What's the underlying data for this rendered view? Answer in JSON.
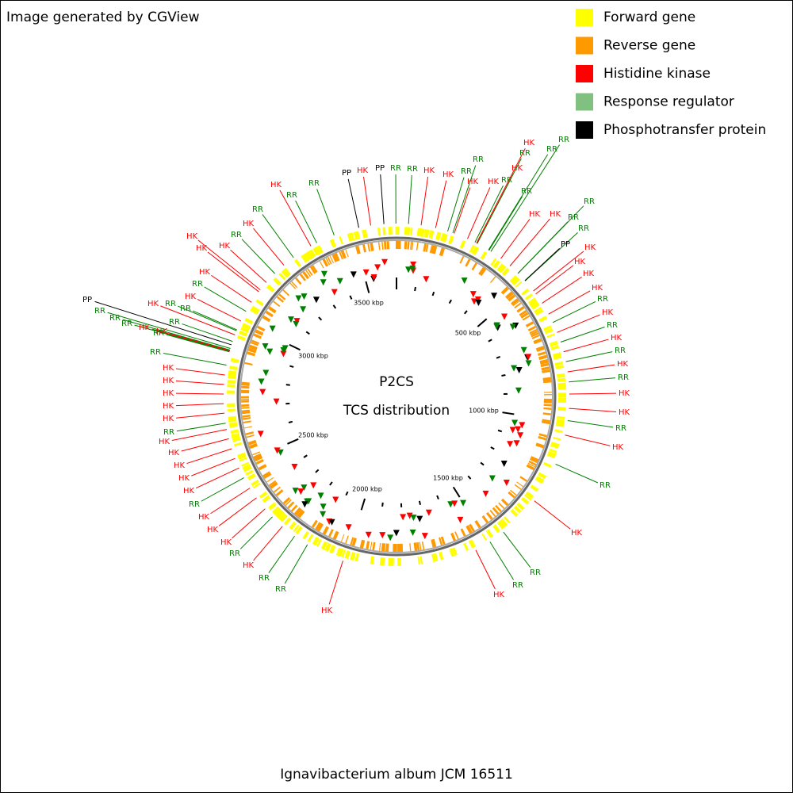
{
  "header": {
    "credit": "Image generated by CGView"
  },
  "legend": [
    {
      "label": "Forward gene",
      "color": "#ffff00"
    },
    {
      "label": "Reverse gene",
      "color": "#ff9900"
    },
    {
      "label": "Histidine kinase",
      "color": "#ff0000"
    },
    {
      "label": "Response regulator",
      "color": "#80c080"
    },
    {
      "label": "Phosphotransfer protein",
      "color": "#000000"
    }
  ],
  "center": {
    "title": "P2CS",
    "subtitle": "TCS distribution"
  },
  "scale_labels": [
    "500 kbp",
    "1000 kbp",
    "1500 kbp",
    "2000 kbp",
    "2500 kbp",
    "3000 kbp",
    "3500 kbp"
  ],
  "feature_colors": {
    "HK": "#ff0000",
    "RR": "#008000",
    "PP": "#000000"
  },
  "features": [
    "HK",
    "RR",
    "RR",
    "PP",
    "HK",
    "PP",
    "RR",
    "RR",
    "HK",
    "HK",
    "RR",
    "RR",
    "HK",
    "HK",
    "RR",
    "HK",
    "RR",
    "HK",
    "RR",
    "RR",
    "RR",
    "RR",
    "RR",
    "HK",
    "HK",
    "RR",
    "PP",
    "HK",
    "HK",
    "HK",
    "HK",
    "RR",
    "HK",
    "RR",
    "HK",
    "RR",
    "HK",
    "RR",
    "HK",
    "HK",
    "RR",
    "HK",
    "RR",
    "HK",
    "RR",
    "RR",
    "HK",
    "HK",
    "RR",
    "RR",
    "HK",
    "RR",
    "HK",
    "HK",
    "HK",
    "RR",
    "HK",
    "HK",
    "HK",
    "HK",
    "HK",
    "RR",
    "HK",
    "HK",
    "HK",
    "HK",
    "HK",
    "RR",
    "HK",
    "RR",
    "PP",
    "RR",
    "RR",
    "RR",
    "HK",
    "RR",
    "HK",
    "RR",
    "RR",
    "HK",
    "RR",
    "HK",
    "HK",
    "RR",
    "HK",
    "HK",
    "HK",
    "RR"
  ],
  "footer": "Ignavibacterium album JCM 16511"
}
